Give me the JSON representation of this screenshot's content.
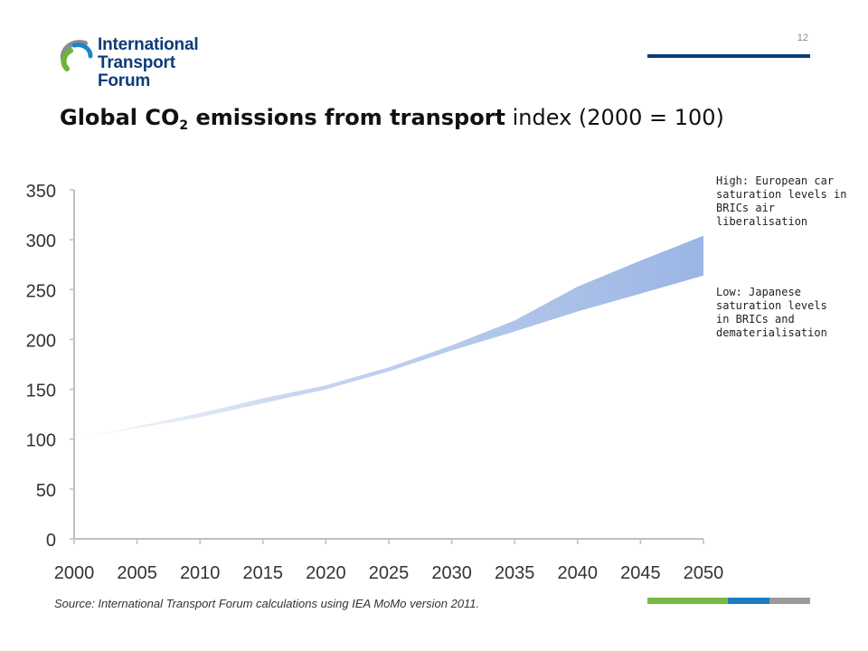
{
  "header": {
    "logo_line1": "International",
    "logo_line2": "Transport Forum",
    "page_number": "12"
  },
  "title": {
    "bold_part": "Global CO",
    "subscript": "2",
    "bold_part2": " emissions from transport",
    "light_part": " index (2000 = 100)"
  },
  "chart_data": {
    "type": "area",
    "x": [
      2000,
      2005,
      2010,
      2015,
      2020,
      2025,
      2030,
      2035,
      2040,
      2045,
      2050
    ],
    "xlim": [
      2000,
      2050
    ],
    "ylim": [
      0,
      350
    ],
    "yticks": [
      0,
      50,
      100,
      150,
      200,
      250,
      300,
      350
    ],
    "xticks": [
      2000,
      2005,
      2010,
      2015,
      2020,
      2025,
      2030,
      2035,
      2040,
      2045,
      2050
    ],
    "series": [
      {
        "name": "High: European car saturation levels in BRICs air liberalisation",
        "values": [
          100,
          113,
          126,
          141,
          154,
          172,
          194,
          219,
          253,
          279,
          304
        ]
      },
      {
        "name": "Low: Japanese saturation levels in BRICs and dematerialisation",
        "values": [
          100,
          111,
          122,
          136,
          150,
          168,
          189,
          208,
          228,
          246,
          264
        ]
      }
    ],
    "fill_color": "#9bb5e4",
    "axis_color": "#bfbfbf",
    "grid": false
  },
  "annotations": {
    "high": [
      "High: European car",
      "saturation levels in",
      "BRICs air",
      "liberalisation"
    ],
    "low": [
      "Low: Japanese",
      "saturation levels",
      "in BRICs and",
      "dematerialisation"
    ]
  },
  "footer": {
    "source": "Source: International Transport Forum calculations using IEA MoMo version 2011.",
    "bar_colors": [
      "#77b843",
      "#1d7bc1",
      "#9a9a9a"
    ]
  }
}
